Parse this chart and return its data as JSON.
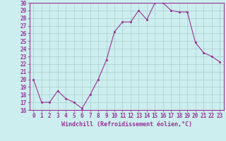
{
  "x": [
    0,
    1,
    2,
    3,
    4,
    5,
    6,
    7,
    8,
    9,
    10,
    11,
    12,
    13,
    14,
    15,
    16,
    17,
    18,
    19,
    20,
    21,
    22,
    23
  ],
  "y": [
    20,
    17,
    17,
    18.5,
    17.5,
    17,
    16.2,
    18,
    20,
    22.5,
    26.2,
    27.5,
    27.5,
    29,
    27.8,
    30,
    30,
    29,
    28.8,
    28.8,
    24.8,
    23.5,
    23,
    22.3
  ],
  "line_color": "#993399",
  "marker_color": "#993399",
  "bg_color": "#cceeee",
  "grid_color": "#aacccc",
  "xlabel": "Windchill (Refroidissement éolien,°C)",
  "ylim": [
    16,
    30
  ],
  "xlim_min": -0.5,
  "xlim_max": 23.5,
  "yticks": [
    16,
    17,
    18,
    19,
    20,
    21,
    22,
    23,
    24,
    25,
    26,
    27,
    28,
    29,
    30
  ],
  "xticks": [
    0,
    1,
    2,
    3,
    4,
    5,
    6,
    7,
    8,
    9,
    10,
    11,
    12,
    13,
    14,
    15,
    16,
    17,
    18,
    19,
    20,
    21,
    22,
    23
  ],
  "tick_label_color": "#993399",
  "axes_color": "#993399",
  "font_family": "monospace",
  "xlabel_fontsize": 6,
  "tick_fontsize": 5.5,
  "linewidth": 0.8,
  "markersize": 2.0
}
